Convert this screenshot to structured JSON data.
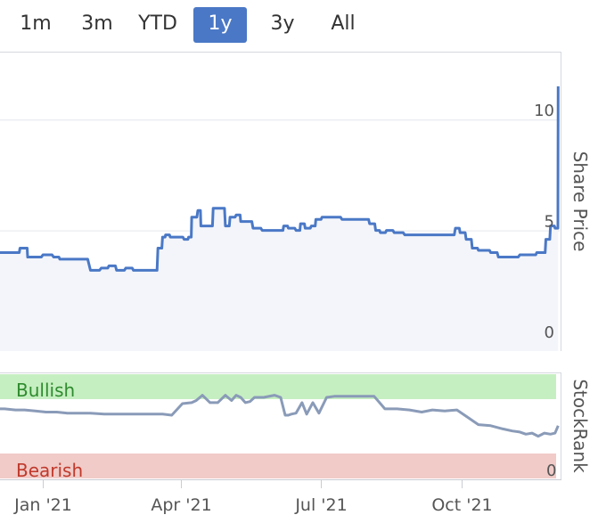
{
  "range_tabs": [
    {
      "label": "1m",
      "active": false
    },
    {
      "label": "3m",
      "active": false
    },
    {
      "label": "YTD",
      "active": false
    },
    {
      "label": "1y",
      "active": true
    },
    {
      "label": "3y",
      "active": false
    },
    {
      "label": "All",
      "active": false
    }
  ],
  "colors": {
    "accent": "#4a78c6",
    "price_line": "#4a78c6",
    "price_area": "#f3f5fa",
    "rank_line": "#8a9bb8",
    "bullish_band": "#c6efc1",
    "bearish_band": "#f0cbc8",
    "bullish_text": "#2e8b2e",
    "bearish_text": "#c0392b"
  },
  "chart_data": [
    {
      "type": "area",
      "ylabel": "Share Price",
      "ylim": [
        0,
        12.5
      ],
      "yticks": [
        0,
        5,
        10
      ],
      "x": [
        "2020-12-07",
        "2020-12-14",
        "2020-12-17",
        "2020-12-20",
        "2020-12-22",
        "2020-12-25",
        "2021-01-01",
        "2021-01-08",
        "2021-01-12",
        "2021-01-20",
        "2021-02-01",
        "2021-02-08",
        "2021-02-13",
        "2021-02-18",
        "2021-02-24",
        "2021-03-01",
        "2021-03-06",
        "2021-03-13",
        "2021-03-17",
        "2021-03-20",
        "2021-03-22",
        "2021-03-25",
        "2021-03-29",
        "2021-04-03",
        "2021-04-06",
        "2021-04-08",
        "2021-04-12",
        "2021-04-14",
        "2021-04-19",
        "2021-04-22",
        "2021-04-26",
        "2021-04-30",
        "2021-05-03",
        "2021-05-07",
        "2021-05-10",
        "2021-05-13",
        "2021-05-18",
        "2021-05-24",
        "2021-06-01",
        "2021-06-04",
        "2021-06-07",
        "2021-06-10",
        "2021-06-15",
        "2021-06-18",
        "2021-06-21",
        "2021-06-25",
        "2021-06-28",
        "2021-07-02",
        "2021-07-06",
        "2021-07-09",
        "2021-07-15",
        "2021-07-22",
        "2021-07-29",
        "2021-08-02",
        "2021-08-06",
        "2021-08-09",
        "2021-08-13",
        "2021-08-18",
        "2021-08-25",
        "2021-09-01",
        "2021-09-08",
        "2021-09-15",
        "2021-09-22",
        "2021-09-27",
        "2021-09-30",
        "2021-10-04",
        "2021-10-08",
        "2021-10-12",
        "2021-10-15",
        "2021-10-20",
        "2021-10-25",
        "2021-11-01",
        "2021-11-08",
        "2021-11-15",
        "2021-11-19",
        "2021-11-22",
        "2021-11-25",
        "2021-11-28",
        "2021-12-01",
        "2021-12-02",
        "2021-12-03"
      ],
      "values": [
        4.0,
        4.0,
        4.2,
        4.2,
        3.8,
        3.8,
        3.9,
        3.8,
        3.7,
        3.7,
        3.2,
        3.3,
        3.4,
        3.2,
        3.3,
        3.2,
        3.2,
        3.2,
        4.2,
        4.7,
        4.8,
        4.7,
        4.7,
        4.6,
        4.7,
        5.6,
        5.9,
        5.2,
        5.2,
        6.0,
        6.0,
        5.2,
        5.6,
        5.7,
        5.4,
        5.4,
        5.1,
        5.0,
        5.0,
        5.0,
        5.2,
        5.1,
        5.0,
        5.3,
        5.1,
        5.2,
        5.5,
        5.6,
        5.6,
        5.6,
        5.5,
        5.5,
        5.5,
        5.3,
        5.0,
        4.9,
        5.0,
        4.9,
        4.8,
        4.8,
        4.8,
        4.8,
        4.8,
        5.1,
        4.9,
        4.6,
        4.2,
        4.1,
        4.1,
        4.0,
        3.8,
        3.8,
        3.9,
        3.9,
        4.0,
        4.0,
        4.6,
        5.2,
        5.1,
        5.1,
        11.5
      ]
    },
    {
      "type": "line",
      "ylabel": "StockRank",
      "yticks": [
        0
      ],
      "band_labels": {
        "top": "Bullish",
        "bottom": "Bearish"
      },
      "ylim": [
        0,
        100
      ],
      "x_tick_labels": [
        "Jan '21",
        "Apr '21",
        "Jul '21",
        "Oct '21"
      ],
      "x_tick_dates": [
        "2021-01-01",
        "2021-04-01",
        "2021-07-01",
        "2021-10-01"
      ],
      "x": [
        "2020-12-07",
        "2020-12-14",
        "2020-12-20",
        "2020-12-27",
        "2021-01-03",
        "2021-01-10",
        "2021-01-17",
        "2021-01-24",
        "2021-02-01",
        "2021-02-10",
        "2021-02-20",
        "2021-03-01",
        "2021-03-10",
        "2021-03-20",
        "2021-03-26",
        "2021-04-02",
        "2021-04-08",
        "2021-04-11",
        "2021-04-15",
        "2021-04-20",
        "2021-04-25",
        "2021-04-30",
        "2021-05-04",
        "2021-05-07",
        "2021-05-10",
        "2021-05-13",
        "2021-05-16",
        "2021-05-19",
        "2021-05-25",
        "2021-06-01",
        "2021-06-05",
        "2021-06-08",
        "2021-06-10",
        "2021-06-12",
        "2021-06-15",
        "2021-06-19",
        "2021-06-22",
        "2021-06-26",
        "2021-06-30",
        "2021-07-05",
        "2021-07-10",
        "2021-07-20",
        "2021-07-28",
        "2021-08-05",
        "2021-08-12",
        "2021-08-20",
        "2021-08-28",
        "2021-09-05",
        "2021-09-12",
        "2021-09-20",
        "2021-09-28",
        "2021-10-05",
        "2021-10-12",
        "2021-10-20",
        "2021-10-28",
        "2021-11-03",
        "2021-11-08",
        "2021-11-12",
        "2021-11-16",
        "2021-11-20",
        "2021-11-24",
        "2021-11-28",
        "2021-12-01",
        "2021-12-03"
      ],
      "values": [
        67,
        66,
        66,
        65,
        64,
        64,
        63,
        63,
        63,
        62,
        62,
        62,
        62,
        62,
        61,
        72,
        73,
        75,
        80,
        73,
        73,
        80,
        75,
        80,
        78,
        73,
        74,
        78,
        78,
        80,
        78,
        61,
        61,
        62,
        63,
        73,
        62,
        73,
        63,
        78,
        79,
        79,
        79,
        79,
        67,
        67,
        66,
        64,
        66,
        65,
        66,
        59,
        52,
        51,
        48,
        46,
        45,
        43,
        44,
        41,
        44,
        43,
        44,
        51
      ]
    }
  ]
}
